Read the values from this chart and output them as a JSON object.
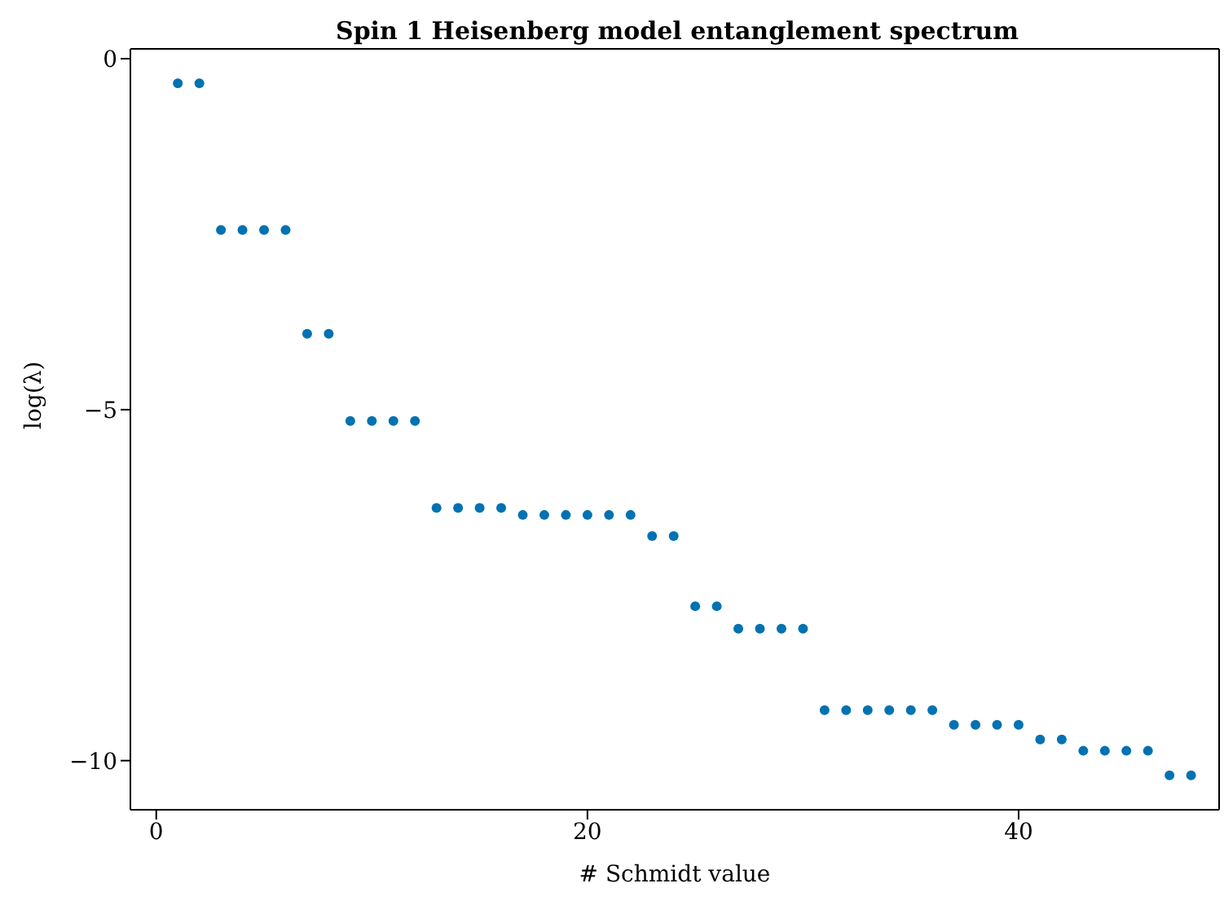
{
  "chart_data": {
    "type": "scatter",
    "title": "Spin 1 Heisenberg model entanglement spectrum",
    "xlabel": "# Schmidt value",
    "ylabel": "log(λ)",
    "x": [
      1,
      2,
      3,
      4,
      5,
      6,
      7,
      8,
      9,
      10,
      11,
      12,
      13,
      14,
      15,
      16,
      17,
      18,
      19,
      20,
      21,
      22,
      23,
      24,
      25,
      26,
      27,
      28,
      29,
      30,
      31,
      32,
      33,
      34,
      35,
      36,
      37,
      38,
      39,
      40,
      41,
      42,
      43,
      44,
      45,
      46,
      47,
      48
    ],
    "series": [
      {
        "color": "#0072b2",
        "values": [
          -0.35,
          -0.35,
          -2.44,
          -2.44,
          -2.44,
          -2.44,
          -3.92,
          -3.92,
          -5.16,
          -5.16,
          -5.16,
          -5.16,
          -6.4,
          -6.4,
          -6.4,
          -6.4,
          -6.5,
          -6.5,
          -6.5,
          -6.5,
          -6.5,
          -6.5,
          -6.8,
          -6.8,
          -7.8,
          -7.8,
          -8.12,
          -8.12,
          -8.12,
          -8.12,
          -9.28,
          -9.28,
          -9.28,
          -9.28,
          -9.28,
          -9.28,
          -9.49,
          -9.49,
          -9.49,
          -9.49,
          -9.7,
          -9.7,
          -9.86,
          -9.86,
          -9.86,
          -9.86,
          -10.21,
          -10.21
        ]
      }
    ],
    "xlim": [
      -1.2,
      49.3
    ],
    "xticks": [
      0,
      20,
      40
    ],
    "ylim": [
      -10.7,
      0.14
    ],
    "yticks": [
      0,
      -5,
      -10
    ],
    "marker": "circle"
  }
}
